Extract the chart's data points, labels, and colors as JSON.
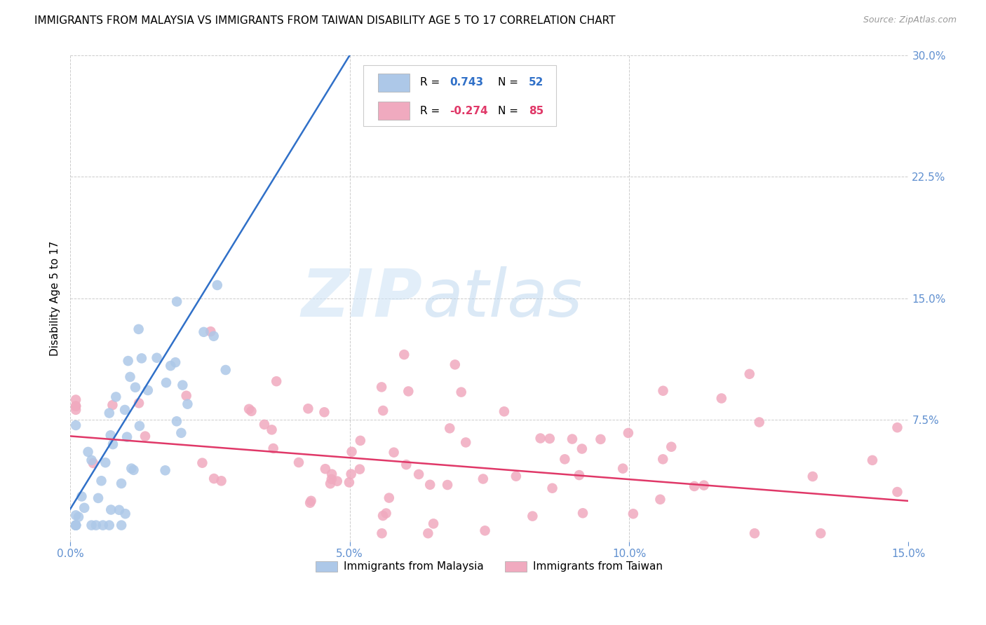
{
  "title": "IMMIGRANTS FROM MALAYSIA VS IMMIGRANTS FROM TAIWAN DISABILITY AGE 5 TO 17 CORRELATION CHART",
  "source": "Source: ZipAtlas.com",
  "ylabel": "Disability Age 5 to 17",
  "xlim": [
    0.0,
    0.15
  ],
  "ylim": [
    0.0,
    0.3
  ],
  "xticks": [
    0.0,
    0.05,
    0.1,
    0.15
  ],
  "xticklabels": [
    "0.0%",
    "5.0%",
    "10.0%",
    "15.0%"
  ],
  "yticks_right": [
    0.075,
    0.15,
    0.225,
    0.3
  ],
  "yticklabels_right": [
    "7.5%",
    "15.0%",
    "22.5%",
    "30.0%"
  ],
  "malaysia_color": "#adc8e8",
  "taiwan_color": "#f0aabf",
  "malaysia_line_color": "#3070c8",
  "taiwan_line_color": "#e03868",
  "malaysia_R": 0.743,
  "malaysia_N": 52,
  "taiwan_R": -0.274,
  "taiwan_N": 85,
  "legend_label_malaysia": "Immigrants from Malaysia",
  "legend_label_taiwan": "Immigrants from Taiwan",
  "watermark_zip": "ZIP",
  "watermark_atlas": "atlas",
  "title_fontsize": 11,
  "axis_color": "#6090d0",
  "grid_color": "#cccccc",
  "background_color": "#ffffff"
}
